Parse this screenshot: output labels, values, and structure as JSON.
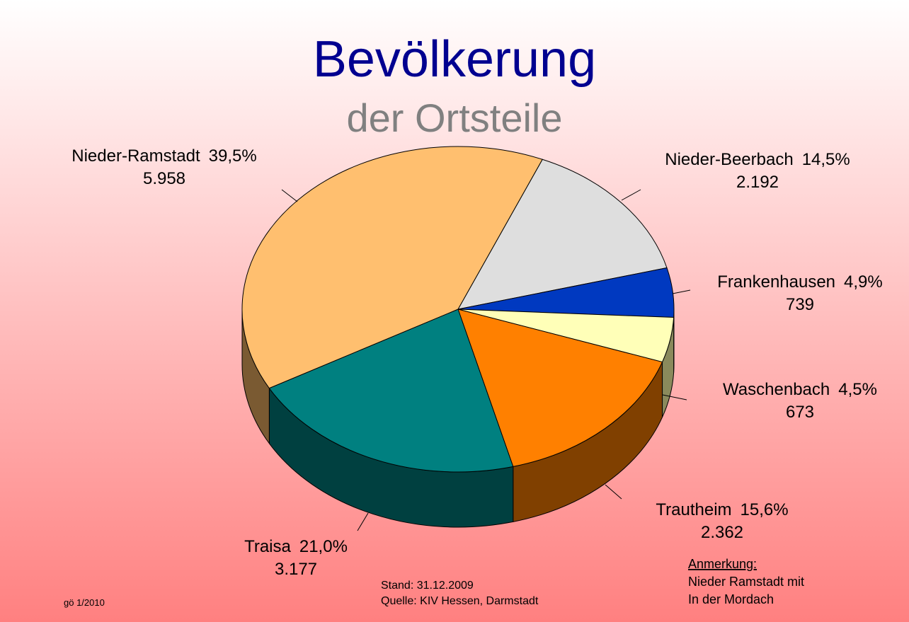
{
  "chart_data": {
    "type": "pie3d",
    "title": "Bevölkerung",
    "subtitle": "der Ortsteile",
    "categories": [
      "Nieder-Beerbach",
      "Frankenhausen",
      "Waschenbach",
      "Trautheim",
      "Traisa",
      "Nieder-Ramstadt"
    ],
    "values": [
      2192,
      739,
      673,
      2362,
      3177,
      5958
    ],
    "value_labels": [
      "2.192",
      "739",
      "673",
      "2.362",
      "3.177",
      "5.958"
    ],
    "percentages": [
      14.5,
      4.9,
      4.5,
      15.6,
      21.0,
      39.5
    ],
    "percentage_labels": [
      "14,5%",
      "4,9%",
      "4,5%",
      "15,6%",
      "21,0%",
      "39,5%"
    ],
    "colors": [
      "#dedede",
      "#0039c0",
      "#ffffb8",
      "#ff8000",
      "#008080",
      "#ffbf6f"
    ],
    "side_colors": [
      "#6e6e6e",
      "#001e60",
      "#8a8a5c",
      "#804000",
      "#004040",
      "#7a5a32"
    ],
    "annotations": {
      "stand": "Stand:  31.12.2009",
      "quelle": "Quelle: KIV Hessen, Darmstadt",
      "author": "gö 1/2010",
      "note_title": "Anmerkung:",
      "note_line1": "Nieder Ramstadt mit",
      "note_line2": "In der Mordach"
    }
  }
}
